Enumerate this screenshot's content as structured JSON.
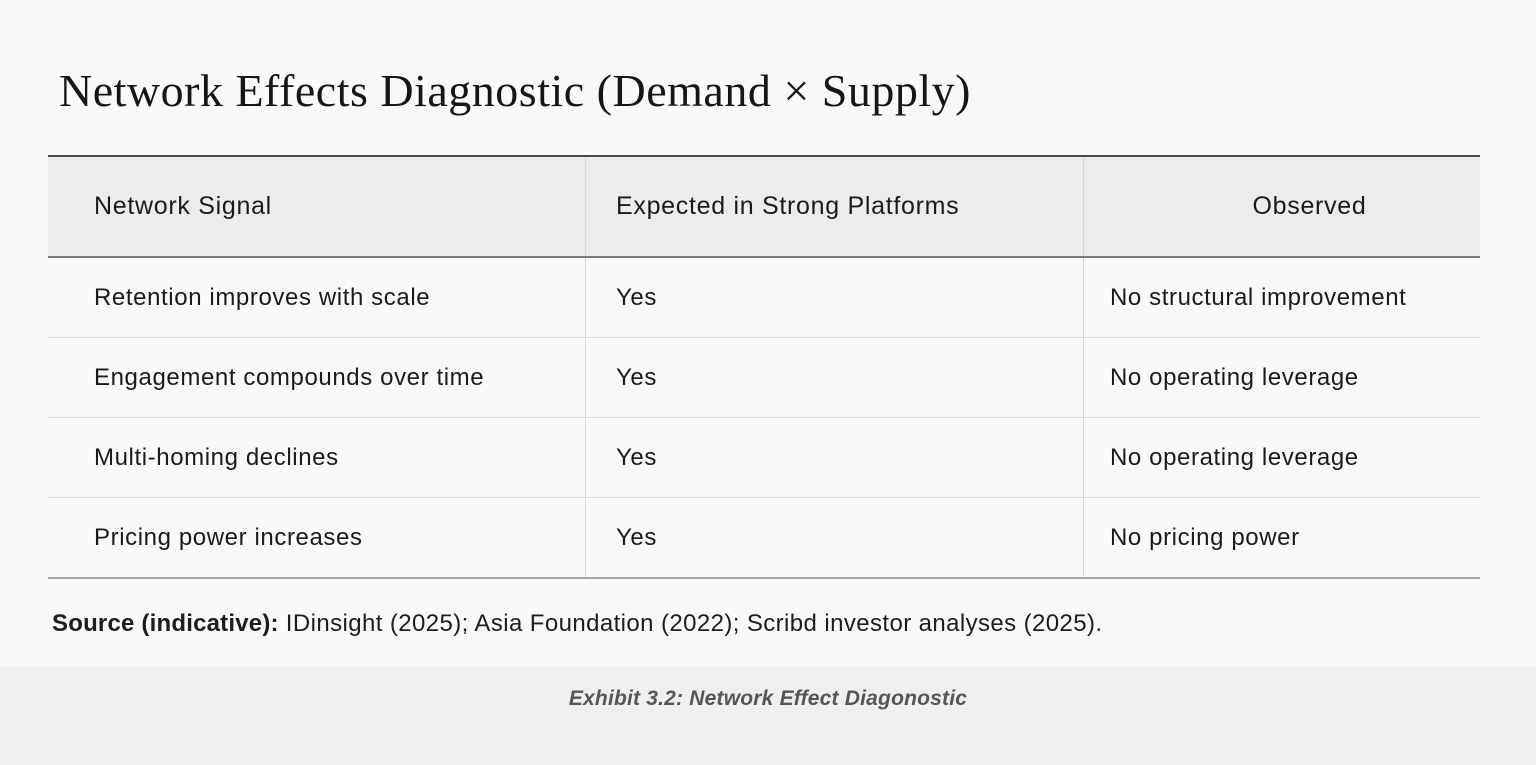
{
  "title": "Network Effects Diagnostic (Demand × Supply)",
  "table": {
    "headers": {
      "signal": "Network Signal",
      "expected": "Expected in Strong Platforms",
      "observed": "Observed"
    },
    "rows": [
      {
        "signal": "Retention improves with scale",
        "expected": "Yes",
        "observed": "No structural improvement"
      },
      {
        "signal": "Engagement compounds over time",
        "expected": "Yes",
        "observed": "No operating leverage"
      },
      {
        "signal": "Multi-homing declines",
        "expected": "Yes",
        "observed": "No operating leverage"
      },
      {
        "signal": "Pricing power increases",
        "expected": "Yes",
        "observed": "No pricing power"
      }
    ]
  },
  "source": {
    "label": "Source (indicative):",
    "text": "IDinsight (2025); Asia Foundation (2022); Scribd investor analyses (2025)."
  },
  "caption": "Exhibit 3.2: Network Effect Diagonostic",
  "colors": {
    "page_bg": "#faf8f9",
    "header_bg": "#edecec",
    "footer_bg": "#f0eff0",
    "text": "#1b1b1b",
    "caption_text": "#55565a",
    "border_dark": "#4a4849",
    "border_medium": "#7b797a",
    "border_bottom": "#a7a5a6",
    "border_light": "#dcdadb"
  }
}
